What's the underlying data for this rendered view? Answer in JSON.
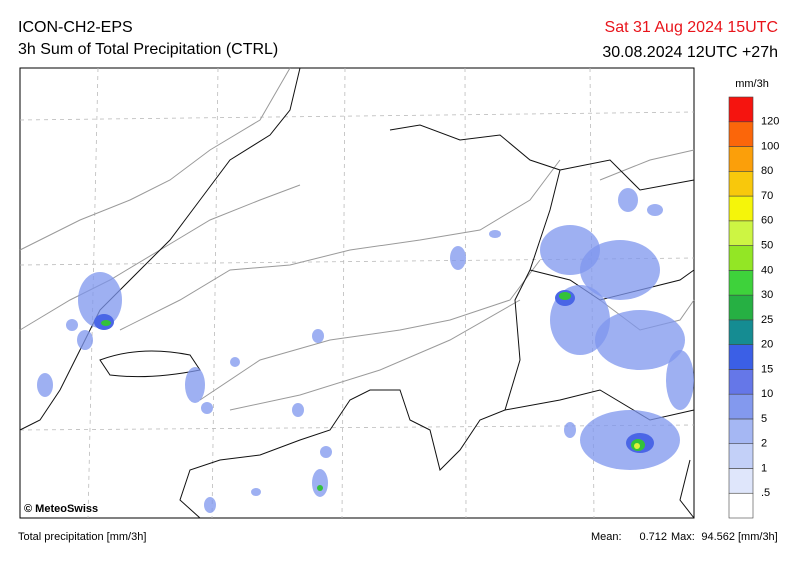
{
  "header": {
    "model": "ICON-CH2-EPS",
    "product": "3h Sum of Total Precipitation (CTRL)",
    "valid_time": "Sat 31 Aug 2024 15UTC",
    "run": "30.08.2024 12UTC +27h"
  },
  "legend": {
    "unit": "mm/3h",
    "labels": [
      ".5",
      "1",
      "2",
      "5",
      "10",
      "15",
      "20",
      "25",
      "30",
      "40",
      "50",
      "60",
      "70",
      "80",
      "100",
      "120"
    ],
    "colors": [
      "#ffffff",
      "#dfe6fb",
      "#c3d0f8",
      "#a5b7f3",
      "#8399ee",
      "#6577e8",
      "#3b5fe6",
      "#158c92",
      "#26b043",
      "#3ed23b",
      "#93e625",
      "#cdf543",
      "#f5f50a",
      "#f8c80c",
      "#fb9f0a",
      "#fb660a",
      "#f5140f"
    ]
  },
  "map": {
    "copyright": "© MeteoSwiss"
  },
  "footer": {
    "description": "Total precipitation [mm/3h]",
    "mean_label": "Mean:",
    "mean": 0.712,
    "max_label": "Max:",
    "max": 94.562,
    "unit": "[mm/3h]"
  }
}
